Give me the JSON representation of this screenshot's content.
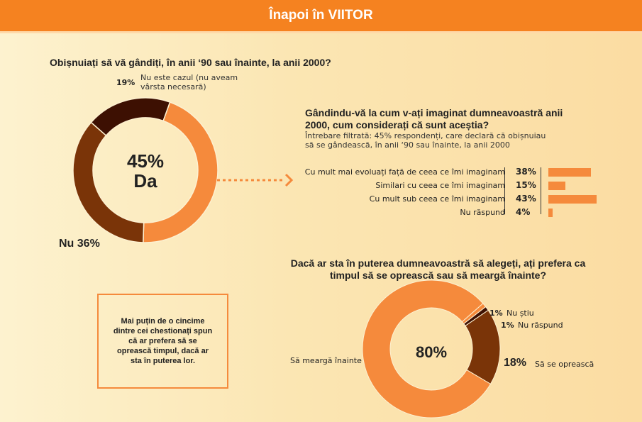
{
  "header": {
    "title": "Înapoi în VIITOR"
  },
  "chart_data": [
    {
      "type": "pie",
      "title": "Obișnuiați să vă gândiți, în anii ‘90 sau înainte, la anii 2000?",
      "center_label": [
        "45%",
        "Da"
      ],
      "slices": [
        {
          "label": "Da",
          "value": 45,
          "color": "#f58a3c"
        },
        {
          "label": "Nu",
          "value": 36,
          "color": "#7a3408",
          "display": "Nu 36%"
        },
        {
          "label": "Nu este cazul (nu aveam vârsta necesară)",
          "value": 19,
          "color": "#3d1002",
          "display": "19%"
        }
      ]
    },
    {
      "type": "bar",
      "title": "Gândindu-vă la cum v-ați imaginat dumneavoastră anii 2000, cum considerați că sunt aceștia?",
      "subtitle": "Întrebare filtrată: 45% respondenți, care declară că obișnuiau să se gândească, în anii ‘90 sau înainte, la anii 2000",
      "categories": [
        "Cu mult mai evoluați față de ceea ce îmi imaginam",
        "Similari cu ceea ce îmi imaginam",
        "Cu mult sub ceea ce îmi imaginam",
        "Nu răspund"
      ],
      "values": [
        38,
        15,
        43,
        4
      ],
      "labels": [
        "38%",
        "15%",
        "43%",
        "4%"
      ],
      "color": "#f58a3c"
    },
    {
      "type": "pie",
      "title": "Dacă ar sta în puterea dumneavoastră să alegeți, ați prefera ca timpul să se oprească sau să meargă înainte?",
      "center_label": [
        "80%"
      ],
      "slices": [
        {
          "label": "Să meargă înainte",
          "value": 80,
          "color": "#f58a3c"
        },
        {
          "label": "Să se oprească",
          "value": 18,
          "color": "#7a3408",
          "display": "18%"
        },
        {
          "label": "Nu răspund",
          "value": 1,
          "color": "#3d1002",
          "display": "1%"
        },
        {
          "label": "Nu știu",
          "value": 1,
          "color": "#f58a3c",
          "display": "1%"
        }
      ]
    }
  ],
  "note": {
    "text": "Mai puțin de o cincime dintre cei chestionați spun că ar prefera să se oprească timpul, dacă ar sta în puterea lor."
  }
}
